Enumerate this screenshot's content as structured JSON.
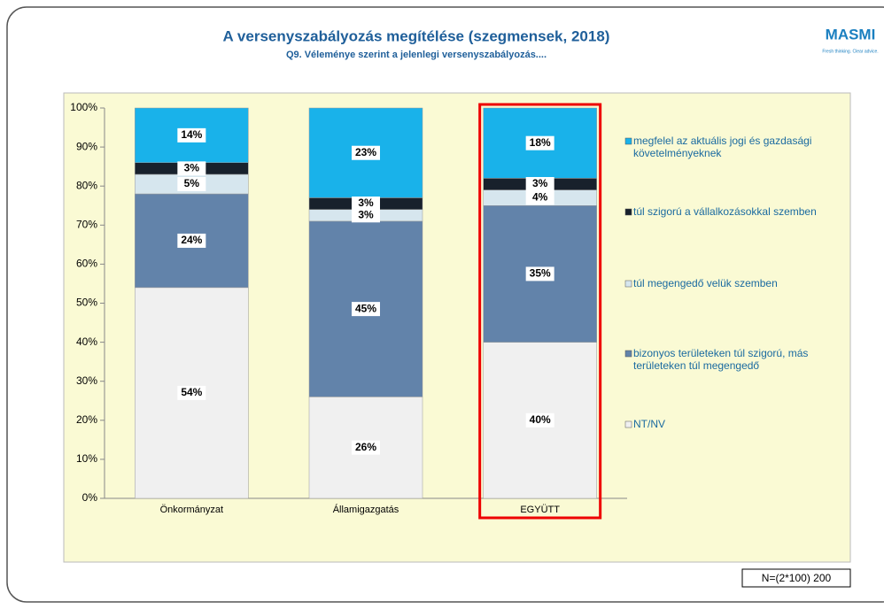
{
  "chart_data": {
    "type": "stacked_bar",
    "title": "A versenyszabályozás megítélése (szegmensek, 2018)",
    "subtitle": "Q9. Véleménye szerint a jelenlegi versenyszabályozás....",
    "logo": "MASMI",
    "logo_tagline": "Fresh thinking. Clear advice.",
    "note": "N=(2*100) 200",
    "categories": [
      "Önkormányzat",
      "Államigazgatás",
      "EGYÜTT"
    ],
    "highlight_category": 2,
    "ylim": [
      0,
      100
    ],
    "yticks": [
      {
        "value": 0,
        "label": "0%"
      },
      {
        "value": 10,
        "label": "10%"
      },
      {
        "value": 20,
        "label": "20%"
      },
      {
        "value": 30,
        "label": "30%"
      },
      {
        "value": 40,
        "label": "40%"
      },
      {
        "value": 50,
        "label": "50%"
      },
      {
        "value": 60,
        "label": "60%"
      },
      {
        "value": 70,
        "label": "70%"
      },
      {
        "value": 80,
        "label": "80%"
      },
      {
        "value": 90,
        "label": "90%"
      },
      {
        "value": 100,
        "label": "100%"
      }
    ],
    "series": [
      {
        "name": "NT/NV",
        "color": "#f0f0f0",
        "values": [
          54,
          26,
          40
        ],
        "value_labels": [
          "54%",
          "26%",
          "40%"
        ]
      },
      {
        "name": "bizonyos területeken túl szigorú, más területeken túl megengedő",
        "color": "#6283aa",
        "values": [
          24,
          45,
          35
        ],
        "value_labels": [
          "24%",
          "45%",
          "35%"
        ]
      },
      {
        "name": "túl megengedő velük szemben",
        "color": "#d6e6ee",
        "values": [
          5,
          3,
          4
        ],
        "value_labels": [
          "5%",
          "3%",
          "4%"
        ]
      },
      {
        "name": "túl szigorú a vállalkozásokkal szemben",
        "color": "#18212c",
        "values": [
          3,
          3,
          3
        ],
        "value_labels": [
          "3%",
          "3%",
          "3%"
        ]
      },
      {
        "name": "megfelel az aktuális jogi és gazdasági követelményeknek",
        "color": "#19b2ea",
        "values": [
          14,
          23,
          18
        ],
        "value_labels": [
          "14%",
          "23%",
          "18%"
        ]
      }
    ]
  }
}
